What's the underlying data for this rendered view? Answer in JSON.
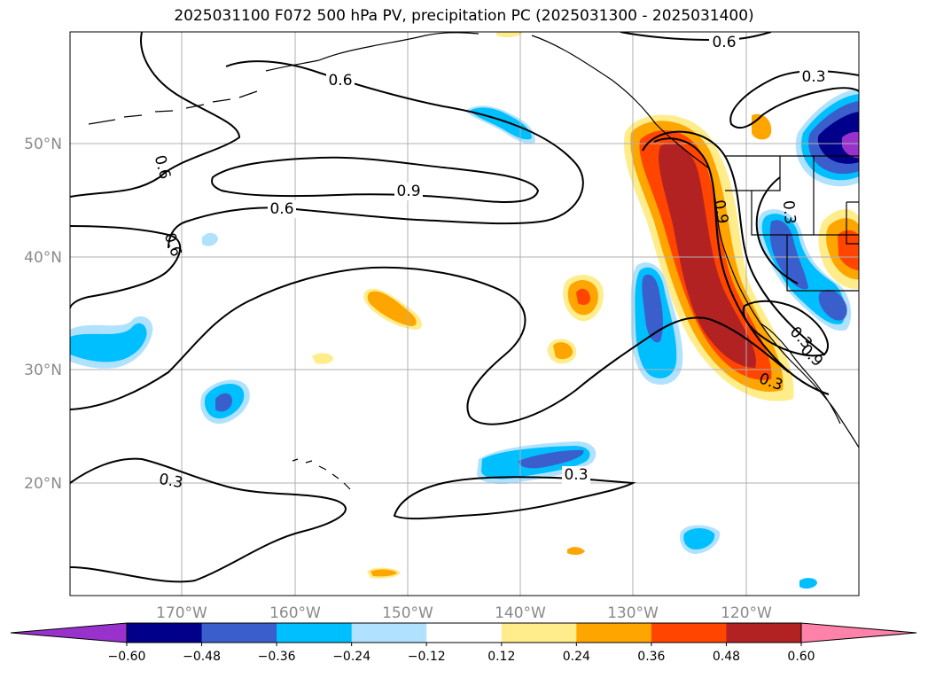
{
  "title": "2025031100 F072 500 hPa PV, precipitation PC (2025031300 - 2025031400)",
  "map": {
    "lat_labels": [
      "50°N",
      "40°N",
      "30°N",
      "20°N"
    ],
    "lon_labels": [
      "170°W",
      "160°W",
      "150°W",
      "140°W",
      "130°W",
      "120°W"
    ],
    "contour_labels": [
      "0.6",
      "0.6",
      "0.6",
      "0.6",
      "0.9",
      "0.6",
      "0.3",
      "0.3",
      "0.9",
      "0.3",
      "0.3",
      "0.3",
      "0.9",
      "0.3"
    ],
    "colors": {
      "neg_060": "#9932cc",
      "neg_048": "#00008b",
      "neg_036": "#3a5fcd",
      "neg_024": "#00bfff",
      "neg_012": "#b0e2ff",
      "pos_012": "#ffec8b",
      "pos_024": "#ffa500",
      "pos_036": "#ff4500",
      "pos_048": "#b22222",
      "pos_060": "#ff82ab"
    }
  },
  "colorbar": {
    "ticks": [
      "−0.60",
      "−0.48",
      "−0.36",
      "−0.24",
      "−0.12",
      "0.12",
      "0.24",
      "0.36",
      "0.48",
      "0.60"
    ],
    "colors": [
      "#9932cc",
      "#00008b",
      "#3a5fcd",
      "#00bfff",
      "#b0e2ff",
      "#ffffff",
      "#ffec8b",
      "#ffa500",
      "#ff4500",
      "#b22222",
      "#ff82ab"
    ]
  }
}
